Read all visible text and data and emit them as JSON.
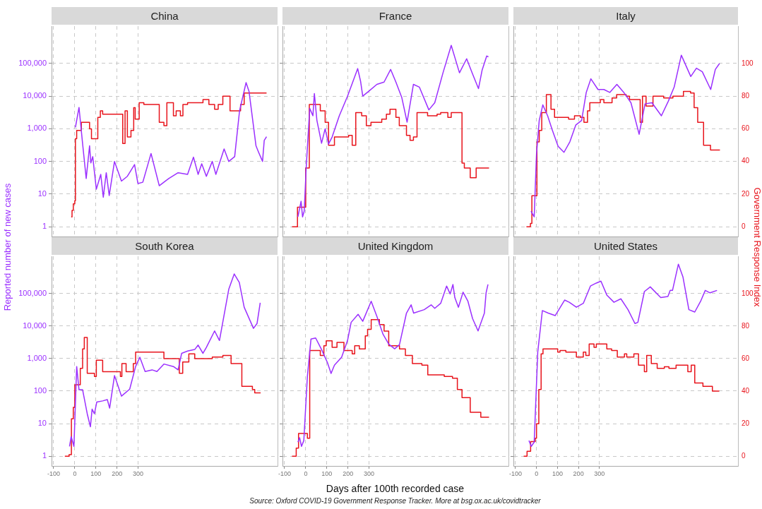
{
  "chart_data": [
    {
      "type": "line",
      "title": "China",
      "ylabel": "Reported number of new cases",
      "log": "y",
      "grid": true,
      "tick_labels": "y",
      "xlim": [
        -110,
        960
      ],
      "ylim": [
        0.5,
        1400000
      ],
      "yticks": [
        1,
        10,
        100,
        {
          "value": 1000,
          "label": "1,000"
        },
        {
          "value": 10000,
          "label": "10,000"
        },
        {
          "value": 100000,
          "label": "100,000"
        }
      ],
      "y2lim": [
        -6,
        123
      ],
      "series": [
        {
          "type": "line",
          "color": "#9b30ff",
          "x": [
            3,
            20,
            37,
            54,
            70,
            76,
            85,
            102,
            123,
            135,
            149,
            163,
            188,
            221,
            249,
            283,
            299,
            322,
            361,
            400,
            445,
            489,
            534,
            562,
            584,
            601,
            623,
            651,
            668,
            707,
            729,
            757,
            780,
            811,
            825,
            858,
            869,
            889,
            897,
            908
          ],
          "values": [
            1100,
            4500,
            350,
            30,
            300,
            90,
            140,
            14,
            40,
            8,
            45,
            9,
            100,
            25,
            35,
            80,
            21,
            23,
            175,
            18,
            30,
            45,
            40,
            135,
            40,
            85,
            35,
            100,
            40,
            240,
            100,
            140,
            3500,
            26000,
            14000,
            300,
            200,
            100,
            440,
            570
          ]
        },
        {
          "type": "step",
          "axis": "y2",
          "color": "#e8141c",
          "x": [
            -17,
            -13,
            -7,
            0,
            3,
            9,
            31,
            70,
            79,
            109,
            121,
            132,
            227,
            238,
            249,
            266,
            279,
            286,
            305,
            327,
            400,
            422,
            436,
            467,
            480,
            500,
            512,
            534,
            607,
            635,
            662,
            679,
            701,
            735,
            785,
            802,
            908
          ],
          "values": [
            6,
            10,
            14,
            16,
            54,
            59,
            64,
            60,
            54,
            67,
            71,
            69,
            51,
            71,
            55,
            59,
            73,
            66,
            76,
            75,
            64,
            62,
            76,
            68,
            71,
            68,
            75,
            76,
            78,
            75,
            72,
            75,
            80,
            71,
            75,
            82,
            82
          ]
        }
      ]
    },
    {
      "type": "line",
      "title": "France",
      "log": "y",
      "grid": true,
      "tick_labels": false,
      "xlim": [
        -110,
        960
      ],
      "ylim": [
        0.5,
        1400000
      ],
      "y2lim": [
        -6,
        123
      ],
      "series": [
        {
          "type": "line",
          "color": "#9b30ff",
          "x": [
            -37,
            -22,
            -15,
            -7,
            2,
            19,
            34,
            41,
            53,
            75,
            92,
            108,
            125,
            159,
            198,
            246,
            260,
            270,
            298,
            337,
            371,
            402,
            427,
            455,
            480,
            510,
            538,
            583,
            611,
            650,
            689,
            728,
            762,
            790,
            818,
            835,
            857,
            865
          ],
          "values": [
            2,
            6,
            2,
            3,
            60,
            4200,
            2500,
            12000,
            1800,
            360,
            1000,
            340,
            560,
            2500,
            10000,
            70000,
            28000,
            10000,
            14000,
            23000,
            27000,
            66000,
            27000,
            9000,
            1600,
            23000,
            19000,
            3800,
            6300,
            52000,
            360000,
            52000,
            140000,
            48000,
            17000,
            62000,
            170000,
            160000
          ]
        },
        {
          "type": "step",
          "axis": "y2",
          "color": "#e8141c",
          "x": [
            -65,
            -39,
            -9,
            0,
            17,
            69,
            92,
            108,
            136,
            203,
            220,
            237,
            265,
            287,
            309,
            360,
            382,
            399,
            427,
            443,
            477,
            494,
            510,
            527,
            577,
            622,
            639,
            673,
            689,
            740,
            751,
            779,
            807,
            868
          ],
          "values": [
            0,
            12,
            12,
            36,
            75,
            71,
            64,
            50,
            55,
            56,
            50,
            70,
            68,
            62,
            64,
            66,
            69,
            72,
            67,
            62,
            56,
            53,
            55,
            70,
            68,
            69,
            70,
            67,
            70,
            39,
            36,
            30,
            36,
            36
          ]
        }
      ]
    },
    {
      "type": "line",
      "title": "Italy",
      "y2label": "Government Response Index",
      "log": "y",
      "grid": true,
      "tick_labels": "y2",
      "xlim": [
        -110,
        960
      ],
      "ylim": [
        0.5,
        1400000
      ],
      "y2lim": [
        -6,
        123
      ],
      "y2ticks": [
        0,
        20,
        40,
        60,
        80,
        100
      ],
      "series": [
        {
          "type": "line",
          "color": "#9b30ff",
          "x": [
            -26,
            -11,
            0,
            13,
            30,
            53,
            75,
            103,
            131,
            159,
            187,
            215,
            237,
            259,
            293,
            321,
            349,
            383,
            416,
            450,
            489,
            517,
            550,
            595,
            628,
            656,
            690,
            735,
            762,
            790,
            830,
            852,
            872
          ],
          "values": [
            3,
            2,
            170,
            1800,
            5400,
            2500,
            920,
            290,
            190,
            400,
            1300,
            1800,
            13000,
            34000,
            16000,
            16000,
            13000,
            23000,
            13000,
            6300,
            680,
            5800,
            6300,
            2500,
            7000,
            19000,
            180000,
            40000,
            72000,
            56000,
            16000,
            66000,
            100000
          ]
        },
        {
          "type": "step",
          "axis": "y2",
          "color": "#e8141c",
          "x": [
            -48,
            -29,
            -22,
            -3,
            2,
            13,
            25,
            47,
            69,
            86,
            153,
            181,
            209,
            226,
            243,
            254,
            304,
            321,
            360,
            382,
            427,
            443,
            494,
            505,
            522,
            555,
            606,
            650,
            700,
            734,
            751,
            768,
            796,
            829,
            874
          ],
          "values": [
            0,
            2,
            19,
            19,
            52,
            59,
            70,
            81,
            72,
            67,
            66,
            68,
            67,
            64,
            71,
            76,
            78,
            76,
            79,
            81,
            80,
            78,
            64,
            80,
            74,
            80,
            79,
            80,
            83,
            82,
            73,
            64,
            50,
            47,
            47
          ]
        }
      ]
    },
    {
      "type": "line",
      "title": "South Korea",
      "log": "y",
      "grid": true,
      "tick_labels": [
        "x",
        "y"
      ],
      "xlim": [
        -110,
        960
      ],
      "xticks": [
        -100,
        0,
        100,
        200,
        300
      ],
      "ylim": [
        0.5,
        1400000
      ],
      "yticks": [
        1,
        10,
        100,
        {
          "value": 1000,
          "label": "1,000"
        },
        {
          "value": 10000,
          "label": "10,000"
        },
        {
          "value": 100000,
          "label": "100,000"
        }
      ],
      "y2lim": [
        -6,
        123
      ],
      "series": [
        {
          "type": "line",
          "color": "#9b30ff",
          "x": [
            -25,
            -17,
            -4,
            9,
            20,
            37,
            59,
            74,
            82,
            93,
            104,
            132,
            154,
            165,
            188,
            204,
            221,
            260,
            288,
            308,
            333,
            366,
            389,
            422,
            467,
            489,
            506,
            534,
            568,
            584,
            607,
            623,
            662,
            685,
            729,
            755,
            779,
            802,
            824,
            846,
            863,
            878
          ],
          "values": [
            2,
            4,
            2,
            570,
            110,
            110,
            20,
            8,
            28,
            20,
            46,
            50,
            55,
            30,
            300,
            150,
            70,
            115,
            570,
            1100,
            400,
            450,
            400,
            680,
            570,
            450,
            1450,
            1700,
            1900,
            2600,
            1450,
            2200,
            7100,
            3600,
            135000,
            400000,
            220000,
            38000,
            18000,
            8500,
            12000,
            52000
          ]
        },
        {
          "type": "step",
          "axis": "y2",
          "color": "#e8141c",
          "x": [
            -47,
            -27,
            -16,
            -7,
            0,
            15,
            26,
            37,
            45,
            59,
            93,
            102,
            132,
            216,
            223,
            243,
            277,
            288,
            311,
            422,
            495,
            511,
            540,
            568,
            651,
            701,
            740,
            791,
            841,
            852,
            880
          ],
          "values": [
            0,
            1,
            23,
            30,
            44,
            44,
            54,
            66,
            73,
            51,
            49,
            59,
            52,
            49,
            57,
            52,
            57,
            64,
            64,
            60,
            51,
            58,
            63,
            60,
            61,
            62,
            57,
            43,
            41,
            39,
            39
          ]
        }
      ]
    },
    {
      "type": "line",
      "title": "United Kingdom",
      "xlabel": "Days after 100th recorded case",
      "annotations": [
        "Source: Oxford COVID-19 Government Response Tracker. More at bsg.ox.ac.uk/covidtracker"
      ],
      "log": "y",
      "grid": true,
      "tick_labels": "x",
      "xlim": [
        -110,
        960
      ],
      "xticks": [
        -100,
        0,
        100,
        200,
        300
      ],
      "ylim": [
        0.5,
        1400000
      ],
      "y2lim": [
        -6,
        123
      ],
      "series": [
        {
          "type": "line",
          "color": "#9b30ff",
          "x": [
            -37,
            -29,
            -20,
            -9,
            8,
            25,
            47,
            75,
            103,
            120,
            136,
            170,
            198,
            215,
            248,
            270,
            310,
            338,
            366,
            393,
            421,
            444,
            477,
            499,
            511,
            561,
            594,
            611,
            639,
            667,
            684,
            697,
            706,
            723,
            745,
            768,
            790,
            816,
            846,
            854,
            863
          ],
          "values": [
            2.7,
            3.7,
            2,
            3,
            290,
            4000,
            4300,
            1900,
            750,
            350,
            630,
            1100,
            3600,
            13000,
            23000,
            14000,
            58000,
            19000,
            5600,
            2800,
            2000,
            2700,
            25000,
            45000,
            25000,
            32000,
            45000,
            35000,
            50000,
            170000,
            97000,
            190000,
            75000,
            38000,
            110000,
            58000,
            17000,
            7100,
            25000,
            105000,
            190000
          ]
        },
        {
          "type": "step",
          "axis": "y2",
          "color": "#e8141c",
          "x": [
            -65,
            -45,
            -34,
            8,
            19,
            69,
            86,
            97,
            125,
            148,
            181,
            220,
            232,
            254,
            282,
            293,
            310,
            349,
            371,
            393,
            444,
            472,
            505,
            550,
            578,
            656,
            695,
            718,
            740,
            779,
            829,
            868
          ],
          "values": [
            0,
            5,
            14,
            11,
            65,
            62,
            68,
            71,
            67,
            70,
            65,
            63,
            68,
            66,
            74,
            78,
            84,
            81,
            77,
            68,
            66,
            62,
            57,
            56,
            50,
            49,
            48,
            41,
            36,
            27,
            24,
            24
          ]
        }
      ]
    },
    {
      "type": "line",
      "title": "United States",
      "log": "y",
      "grid": true,
      "tick_labels": [
        "x",
        "y2"
      ],
      "xlim": [
        -110,
        960
      ],
      "xticks": [
        -100,
        0,
        100,
        200,
        300
      ],
      "ylim": [
        0.5,
        1400000
      ],
      "y2lim": [
        -6,
        123
      ],
      "y2ticks": [
        0,
        20,
        40,
        60,
        80,
        100
      ],
      "series": [
        {
          "type": "line",
          "color": "#9b30ff",
          "x": [
            -36,
            -25,
            -11,
            6,
            28,
            56,
            89,
            134,
            156,
            190,
            223,
            257,
            285,
            307,
            335,
            369,
            402,
            436,
            469,
            483,
            514,
            542,
            592,
            626,
            637,
            648,
            676,
            698,
            726,
            754,
            782,
            804,
            827,
            860
          ],
          "values": [
            3,
            2,
            2.7,
            1600,
            30000,
            25000,
            21000,
            63000,
            54000,
            38000,
            50000,
            170000,
            210000,
            240000,
            90000,
            54000,
            69000,
            32000,
            12000,
            13000,
            115000,
            160000,
            75000,
            81000,
            125000,
            125000,
            800000,
            320000,
            32000,
            27000,
            58000,
            125000,
            105000,
            125000
          ]
        },
        {
          "type": "step",
          "axis": "y2",
          "color": "#e8141c",
          "x": [
            -61,
            -45,
            -28,
            -6,
            0,
            11,
            22,
            31,
            101,
            112,
            140,
            190,
            223,
            235,
            251,
            274,
            285,
            335,
            358,
            385,
            419,
            430,
            464,
            486,
            514,
            525,
            547,
            575,
            609,
            631,
            665,
            721,
            737,
            754,
            793,
            838,
            871
          ],
          "values": [
            0,
            3,
            9,
            11,
            20,
            41,
            63,
            66,
            64,
            65,
            64,
            61,
            64,
            62,
            69,
            67,
            69,
            66,
            65,
            61,
            63,
            61,
            63,
            56,
            52,
            62,
            57,
            54,
            55,
            54,
            56,
            52,
            56,
            45,
            43,
            40,
            40
          ]
        }
      ]
    }
  ]
}
